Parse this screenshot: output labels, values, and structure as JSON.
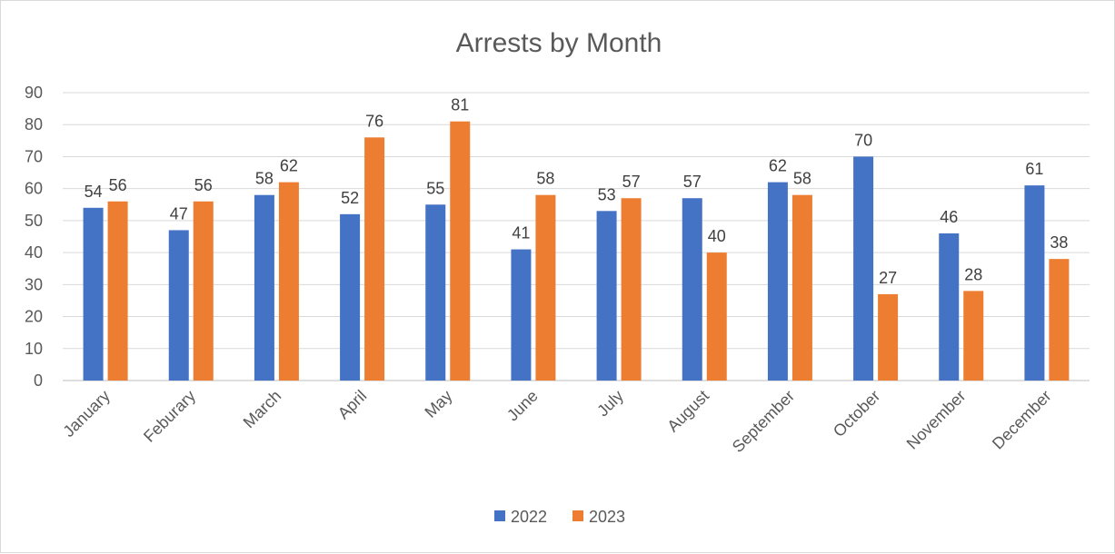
{
  "chart_data": {
    "type": "bar",
    "title": "Arrests by Month",
    "xlabel": "",
    "ylabel": "",
    "categories": [
      "January",
      "Feburary",
      "March",
      "April",
      "May",
      "June",
      "July",
      "August",
      "September",
      "October",
      "November",
      "December"
    ],
    "series": [
      {
        "name": "2022",
        "color": "#4472C4",
        "values": [
          54,
          47,
          58,
          52,
          55,
          41,
          53,
          57,
          62,
          70,
          46,
          61
        ]
      },
      {
        "name": "2023",
        "color": "#ED7D31",
        "values": [
          56,
          56,
          62,
          76,
          81,
          58,
          57,
          40,
          58,
          27,
          28,
          38
        ]
      }
    ],
    "ylim": [
      0,
      90
    ],
    "yticks": [
      0,
      10,
      20,
      30,
      40,
      50,
      60,
      70,
      80,
      90
    ],
    "grid": true,
    "legend_position": "bottom",
    "data_labels": true
  }
}
